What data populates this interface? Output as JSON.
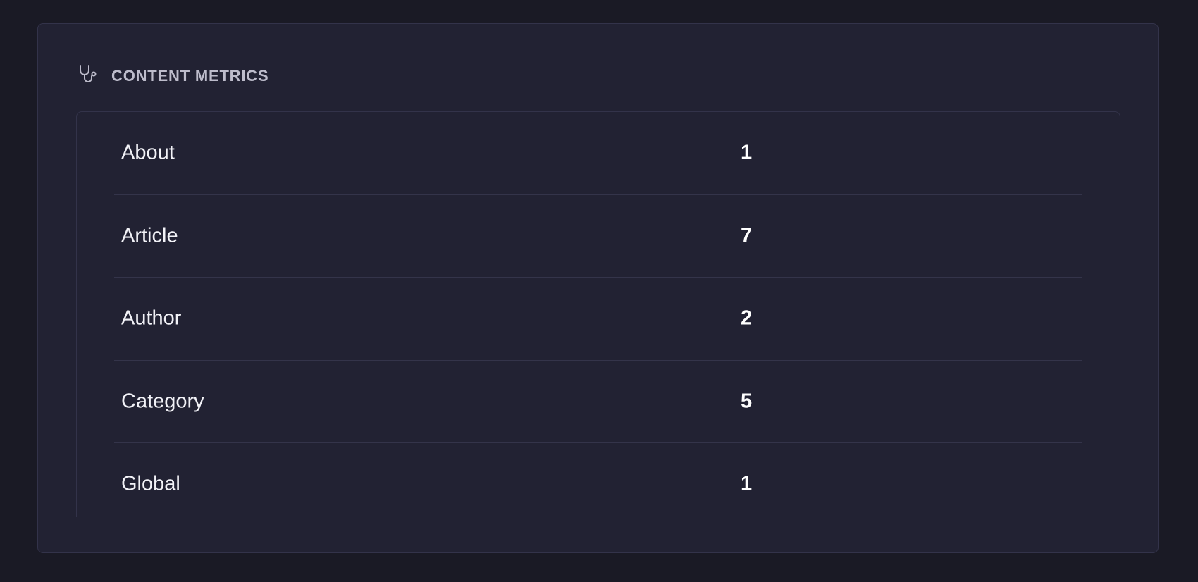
{
  "panel": {
    "title": "CONTENT METRICS",
    "icon": "stethoscope-icon",
    "rows": [
      {
        "label": "About",
        "value": "1"
      },
      {
        "label": "Article",
        "value": "7"
      },
      {
        "label": "Author",
        "value": "2"
      },
      {
        "label": "Category",
        "value": "5"
      },
      {
        "label": "Global",
        "value": "1"
      }
    ]
  }
}
